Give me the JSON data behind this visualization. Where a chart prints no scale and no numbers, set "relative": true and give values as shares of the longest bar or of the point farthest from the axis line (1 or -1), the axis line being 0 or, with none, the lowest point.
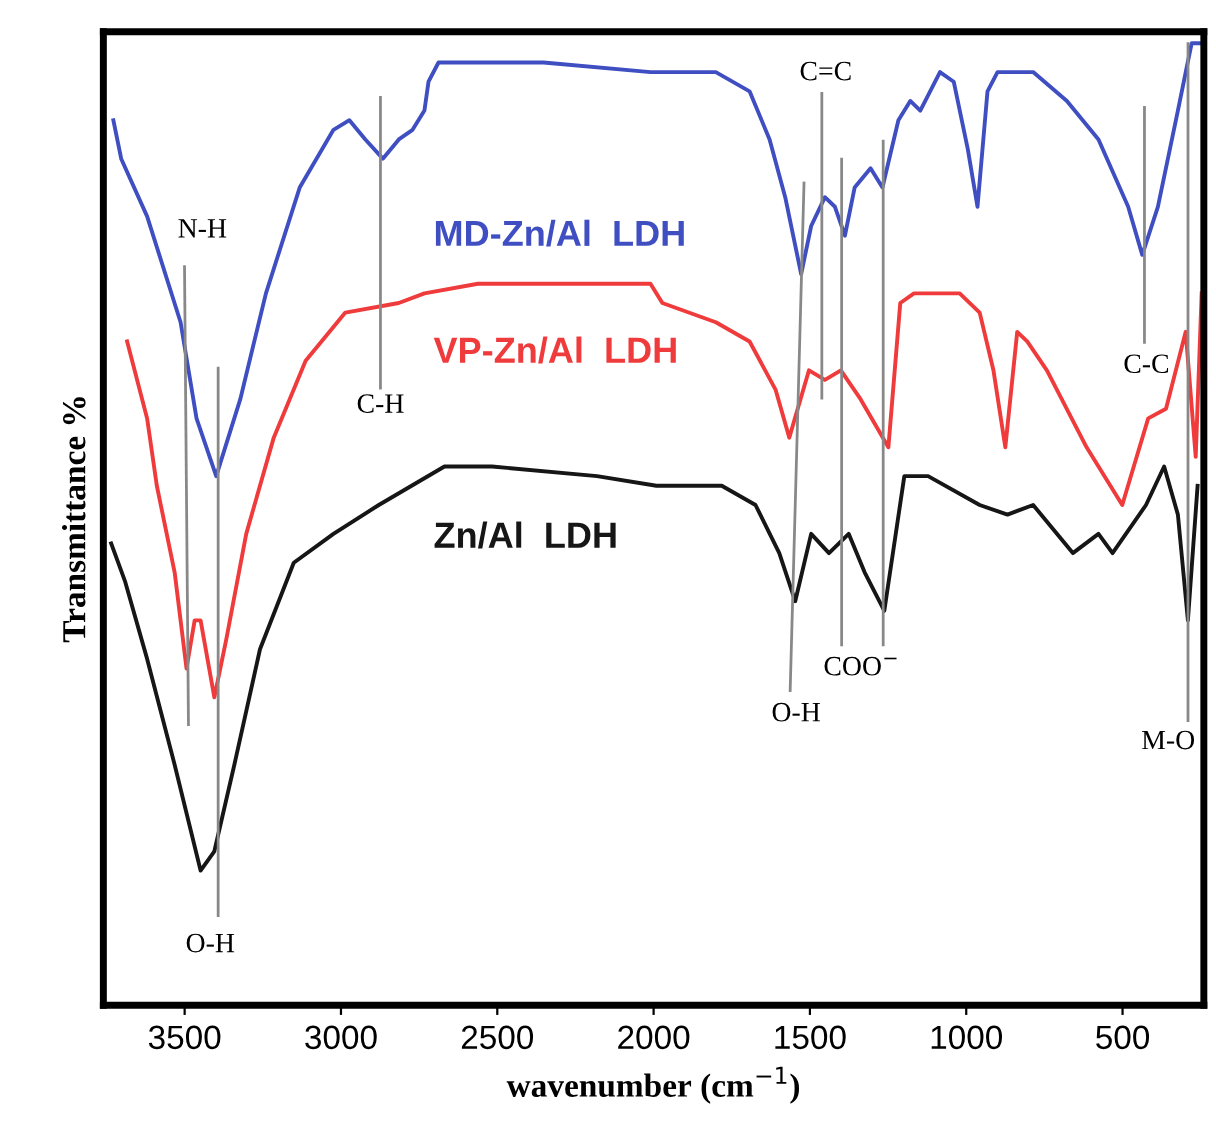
{
  "chart_data": {
    "type": "line",
    "relative": true,
    "xlabel": "wavenumber (cm$^{−1}$)",
    "ylabel": "Transmittance %",
    "xlim": [
      3760,
      240
    ],
    "xticks": [
      3500,
      3000,
      2500,
      2000,
      1500,
      1000,
      500
    ],
    "grid": false,
    "series": [
      {
        "name": "MD-Zn/Al  LDH",
        "color": "#3f4fc2",
        "x": [
          3728,
          3703,
          3620,
          3513,
          3462,
          3399,
          3322,
          3240,
          3132,
          3024,
          2973,
          2922,
          2866,
          2815,
          2771,
          2733,
          2720,
          2688,
          2562,
          2352,
          2010,
          1801,
          1693,
          1629,
          1579,
          1528,
          1496,
          1452,
          1420,
          1388,
          1357,
          1306,
          1268,
          1217,
          1179,
          1147,
          1084,
          1040,
          995,
          964,
          932,
          900,
          786,
          678,
          577,
          482,
          437,
          387,
          323,
          279,
          247
        ],
        "values": [
          0.92,
          0.88,
          0.82,
          0.71,
          0.61,
          0.55,
          0.63,
          0.74,
          0.85,
          0.91,
          0.92,
          0.9,
          0.88,
          0.9,
          0.91,
          0.93,
          0.96,
          0.98,
          0.98,
          0.98,
          0.97,
          0.97,
          0.95,
          0.9,
          0.84,
          0.76,
          0.81,
          0.84,
          0.83,
          0.8,
          0.85,
          0.87,
          0.85,
          0.92,
          0.94,
          0.93,
          0.97,
          0.96,
          0.89,
          0.83,
          0.95,
          0.97,
          0.97,
          0.94,
          0.9,
          0.83,
          0.78,
          0.83,
          0.93,
          1.0,
          1.0
        ]
      },
      {
        "name": "VP-Zn/Al  LDH",
        "color": "#ef3b3b",
        "x": [
          3684,
          3620,
          3589,
          3532,
          3494,
          3468,
          3449,
          3405,
          3367,
          3303,
          3215,
          3113,
          2986,
          2815,
          2733,
          2562,
          2010,
          1972,
          1801,
          1693,
          1610,
          1566,
          1503,
          1452,
          1401,
          1338,
          1249,
          1211,
          1167,
          1021,
          957,
          913,
          875,
          837,
          805,
          742,
          615,
          501,
          418,
          361,
          298,
          266,
          247
        ],
        "values": [
          0.69,
          0.61,
          0.54,
          0.45,
          0.35,
          0.4,
          0.4,
          0.32,
          0.38,
          0.49,
          0.59,
          0.67,
          0.72,
          0.73,
          0.74,
          0.75,
          0.75,
          0.73,
          0.71,
          0.69,
          0.64,
          0.59,
          0.66,
          0.65,
          0.66,
          0.63,
          0.58,
          0.73,
          0.74,
          0.74,
          0.72,
          0.66,
          0.58,
          0.7,
          0.69,
          0.66,
          0.58,
          0.52,
          0.61,
          0.62,
          0.7,
          0.57,
          0.74
        ]
      },
      {
        "name": "Zn/Al  LDH",
        "color": "#161616",
        "x": [
          3735,
          3690,
          3620,
          3532,
          3449,
          3405,
          3341,
          3259,
          3151,
          3024,
          2879,
          2669,
          2517,
          2181,
          1991,
          1782,
          1674,
          1598,
          1547,
          1496,
          1439,
          1376,
          1325,
          1262,
          1198,
          1122,
          957,
          868,
          786,
          659,
          577,
          532,
          425,
          367,
          323,
          291,
          260
        ],
        "values": [
          0.48,
          0.44,
          0.36,
          0.25,
          0.14,
          0.16,
          0.25,
          0.37,
          0.46,
          0.49,
          0.52,
          0.56,
          0.56,
          0.55,
          0.54,
          0.54,
          0.52,
          0.47,
          0.42,
          0.49,
          0.47,
          0.49,
          0.45,
          0.41,
          0.55,
          0.55,
          0.52,
          0.51,
          0.52,
          0.47,
          0.49,
          0.47,
          0.52,
          0.56,
          0.51,
          0.4,
          0.54
        ]
      }
    ],
    "annotations": [
      "N-H",
      "O-H",
      "C-H",
      "C=C",
      "O-H",
      "COO$^{−}$",
      "C-C",
      "M-O"
    ]
  }
}
